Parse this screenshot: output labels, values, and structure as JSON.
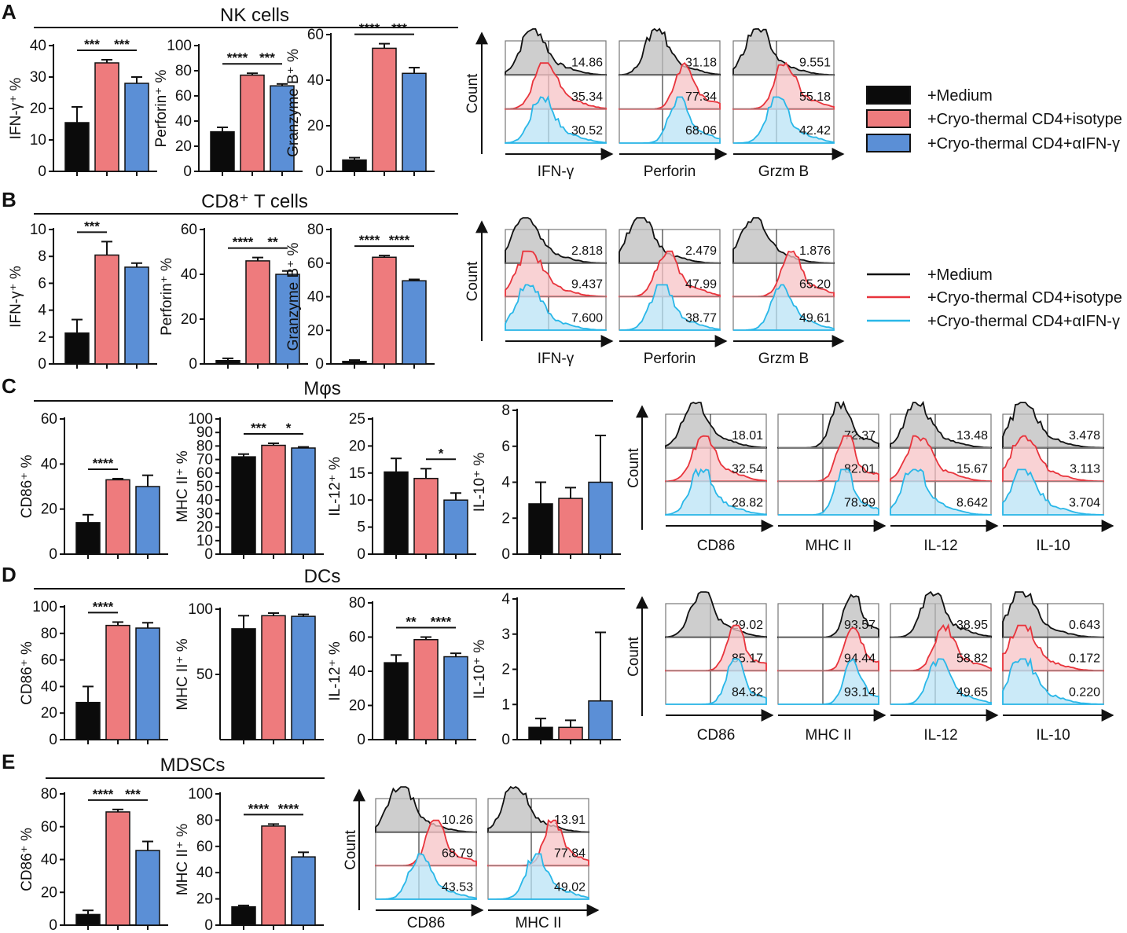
{
  "colors": {
    "medium": "#0b0b0b",
    "isotype": "#ee7b7d",
    "anti_ifn": "#5b8fd6",
    "hist_isotype": "#e8343c",
    "hist_anti_ifn": "#29b7e8",
    "hist_fill_medium": "#bdbdbd",
    "hist_fill_isotype": "#f7c3c6",
    "hist_fill_anti_ifn": "#b9e3f5"
  },
  "legend_bars": {
    "items": [
      "+Medium",
      "+Cryo-thermal CD4+isotype",
      "+Cryo-thermal CD4+αIFN-γ"
    ]
  },
  "legend_lines": {
    "items": [
      "+Medium",
      "+Cryo-thermal CD4+isotype",
      "+Cryo-thermal CD4+αIFN-γ"
    ]
  },
  "panels": [
    {
      "letter": "A",
      "title": "NK cells"
    },
    {
      "letter": "B",
      "title": "CD8⁺ T cells"
    },
    {
      "letter": "C",
      "title": "Mφs"
    },
    {
      "letter": "D",
      "title": "DCs"
    },
    {
      "letter": "E",
      "title": "MDSCs"
    }
  ],
  "chart_data": [
    {
      "type": "bar",
      "panel": "A",
      "ylabel": "IFN-γ⁺ %",
      "ylim": [
        0,
        40
      ],
      "ticks": [
        0,
        10,
        20,
        30,
        40
      ],
      "series": [
        {
          "name": "+Medium",
          "values": [
            15.5
          ],
          "errors": [
            5.0
          ]
        },
        {
          "name": "+Cryo-thermal CD4+isotype",
          "values": [
            34.5
          ],
          "errors": [
            1.0
          ]
        },
        {
          "name": "+Cryo-thermal CD4+αIFN-γ",
          "values": [
            28.0
          ],
          "errors": [
            2.0
          ]
        }
      ],
      "significance": [
        {
          "from": 0,
          "to": 1,
          "label": "***"
        },
        {
          "from": 1,
          "to": 2,
          "label": "***"
        }
      ]
    },
    {
      "type": "bar",
      "panel": "A",
      "ylabel": "Perforin⁺ %",
      "ylim": [
        0,
        100
      ],
      "ticks": [
        0,
        20,
        40,
        60,
        80,
        100
      ],
      "series": [
        {
          "name": "+Medium",
          "values": [
            31.5
          ],
          "errors": [
            3.5
          ]
        },
        {
          "name": "+Cryo-thermal CD4+isotype",
          "values": [
            76.5
          ],
          "errors": [
            1.5
          ]
        },
        {
          "name": "+Cryo-thermal CD4+αIFN-γ",
          "values": [
            68.0
          ],
          "errors": [
            1.5
          ]
        }
      ],
      "significance": [
        {
          "from": 0,
          "to": 1,
          "label": "****"
        },
        {
          "from": 1,
          "to": 2,
          "label": "***"
        }
      ]
    },
    {
      "type": "bar",
      "panel": "A",
      "ylabel": "Granzyme B⁺ %",
      "ylim": [
        0,
        60
      ],
      "ticks": [
        0,
        20,
        40,
        60
      ],
      "series": [
        {
          "name": "+Medium",
          "values": [
            5.0
          ],
          "errors": [
            1.0
          ]
        },
        {
          "name": "+Cryo-thermal CD4+isotype",
          "values": [
            54.0
          ],
          "errors": [
            2.0
          ]
        },
        {
          "name": "+Cryo-thermal CD4+αIFN-γ",
          "values": [
            43.0
          ],
          "errors": [
            2.5
          ]
        }
      ],
      "significance": [
        {
          "from": 0,
          "to": 1,
          "label": "****"
        },
        {
          "from": 1,
          "to": 2,
          "label": "***"
        }
      ]
    },
    {
      "type": "bar",
      "panel": "B",
      "ylabel": "IFN-γ⁺ %",
      "ylim": [
        0,
        10
      ],
      "ticks": [
        0,
        2,
        4,
        6,
        8,
        10
      ],
      "series": [
        {
          "name": "+Medium",
          "values": [
            2.3
          ],
          "errors": [
            1.0
          ]
        },
        {
          "name": "+Cryo-thermal CD4+isotype",
          "values": [
            8.1
          ],
          "errors": [
            1.0
          ]
        },
        {
          "name": "+Cryo-thermal CD4+αIFN-γ",
          "values": [
            7.2
          ],
          "errors": [
            0.3
          ]
        }
      ],
      "significance": [
        {
          "from": 0,
          "to": 1,
          "label": "***"
        }
      ]
    },
    {
      "type": "bar",
      "panel": "B",
      "ylabel": "Perforin⁺ %",
      "ylim": [
        0,
        60
      ],
      "ticks": [
        0,
        20,
        40,
        60
      ],
      "series": [
        {
          "name": "+Medium",
          "values": [
            1.5
          ],
          "errors": [
            1.0
          ]
        },
        {
          "name": "+Cryo-thermal CD4+isotype",
          "values": [
            46.0
          ],
          "errors": [
            1.5
          ]
        },
        {
          "name": "+Cryo-thermal CD4+αIFN-γ",
          "values": [
            40.0
          ],
          "errors": [
            1.5
          ]
        }
      ],
      "significance": [
        {
          "from": 0,
          "to": 1,
          "label": "****"
        },
        {
          "from": 1,
          "to": 2,
          "label": "**"
        }
      ]
    },
    {
      "type": "bar",
      "panel": "B",
      "ylabel": "Granzyme B⁺ %",
      "ylim": [
        0,
        80
      ],
      "ticks": [
        0,
        20,
        40,
        60,
        80
      ],
      "series": [
        {
          "name": "+Medium",
          "values": [
            1.5
          ],
          "errors": [
            0.8
          ]
        },
        {
          "name": "+Cryo-thermal CD4+isotype",
          "values": [
            63.5
          ],
          "errors": [
            1.0
          ]
        },
        {
          "name": "+Cryo-thermal CD4+αIFN-γ",
          "values": [
            49.5
          ],
          "errors": [
            0.8
          ]
        }
      ],
      "significance": [
        {
          "from": 0,
          "to": 1,
          "label": "****"
        },
        {
          "from": 1,
          "to": 2,
          "label": "****"
        }
      ]
    },
    {
      "type": "bar",
      "panel": "C",
      "ylabel": "CD86⁺ %",
      "ylim": [
        0,
        60
      ],
      "ticks": [
        0,
        20,
        40,
        60
      ],
      "series": [
        {
          "name": "+Medium",
          "values": [
            14.0
          ],
          "errors": [
            3.5
          ]
        },
        {
          "name": "+Cryo-thermal CD4+isotype",
          "values": [
            33.0
          ],
          "errors": [
            0.5
          ]
        },
        {
          "name": "+Cryo-thermal CD4+αIFN-γ",
          "values": [
            30.0
          ],
          "errors": [
            5.0
          ]
        }
      ],
      "significance": [
        {
          "from": 0,
          "to": 1,
          "label": "****"
        }
      ]
    },
    {
      "type": "bar",
      "panel": "C",
      "ylabel": "MHC II⁺ %",
      "ylim": [
        0,
        100
      ],
      "ticks": [
        0,
        10,
        20,
        30,
        40,
        50,
        60,
        70,
        80,
        90,
        100
      ],
      "series": [
        {
          "name": "+Medium",
          "values": [
            72.0
          ],
          "errors": [
            2.0
          ]
        },
        {
          "name": "+Cryo-thermal CD4+isotype",
          "values": [
            80.5
          ],
          "errors": [
            1.5
          ]
        },
        {
          "name": "+Cryo-thermal CD4+αIFN-γ",
          "values": [
            78.5
          ],
          "errors": [
            0.8
          ]
        }
      ],
      "significance": [
        {
          "from": 0,
          "to": 1,
          "label": "***"
        },
        {
          "from": 1,
          "to": 2,
          "label": "*"
        }
      ]
    },
    {
      "type": "bar",
      "panel": "C",
      "ylabel": "IL-12⁺ %",
      "ylim": [
        0,
        25
      ],
      "ticks": [
        0,
        5,
        10,
        15,
        20,
        25
      ],
      "series": [
        {
          "name": "+Medium",
          "values": [
            15.2
          ],
          "errors": [
            2.5
          ]
        },
        {
          "name": "+Cryo-thermal CD4+isotype",
          "values": [
            14.0
          ],
          "errors": [
            1.8
          ]
        },
        {
          "name": "+Cryo-thermal CD4+αIFN-γ",
          "values": [
            10.0
          ],
          "errors": [
            1.3
          ]
        }
      ],
      "significance": [
        {
          "from": 1,
          "to": 2,
          "label": "*"
        }
      ]
    },
    {
      "type": "bar",
      "panel": "C",
      "ylabel": "IL-10⁺ %",
      "ylim": [
        0,
        8
      ],
      "ticks": [
        0,
        2,
        4,
        6,
        8
      ],
      "series": [
        {
          "name": "+Medium",
          "values": [
            2.8
          ],
          "errors": [
            1.2
          ]
        },
        {
          "name": "+Cryo-thermal CD4+isotype",
          "values": [
            3.1
          ],
          "errors": [
            0.6
          ]
        },
        {
          "name": "+Cryo-thermal CD4+αIFN-γ",
          "values": [
            4.0
          ],
          "errors": [
            2.6
          ]
        }
      ],
      "significance": []
    },
    {
      "type": "bar",
      "panel": "D",
      "ylabel": "CD86⁺ %",
      "ylim": [
        0,
        100
      ],
      "ticks": [
        0,
        20,
        40,
        60,
        80,
        100
      ],
      "series": [
        {
          "name": "+Medium",
          "values": [
            28.0
          ],
          "errors": [
            12.0
          ]
        },
        {
          "name": "+Cryo-thermal CD4+isotype",
          "values": [
            86.0
          ],
          "errors": [
            2.5
          ]
        },
        {
          "name": "+Cryo-thermal CD4+αIFN-γ",
          "values": [
            84.0
          ],
          "errors": [
            4.0
          ]
        }
      ],
      "significance": [
        {
          "from": 0,
          "to": 1,
          "label": "****"
        }
      ]
    },
    {
      "type": "bar",
      "panel": "D",
      "ylabel": "MHC II⁺ %",
      "ylim": [
        0,
        100
      ],
      "ticks": [
        50,
        100
      ],
      "series": [
        {
          "name": "+Medium",
          "values": [
            85.0
          ],
          "errors": [
            10.0
          ]
        },
        {
          "name": "+Cryo-thermal CD4+isotype",
          "values": [
            95.0
          ],
          "errors": [
            2.0
          ]
        },
        {
          "name": "+Cryo-thermal CD4+αIFN-γ",
          "values": [
            94.5
          ],
          "errors": [
            1.5
          ]
        }
      ],
      "significance": []
    },
    {
      "type": "bar",
      "panel": "D",
      "ylabel": "IL-12⁺ %",
      "ylim": [
        0,
        80
      ],
      "ticks": [
        0,
        20,
        40,
        60,
        80
      ],
      "series": [
        {
          "name": "+Medium",
          "values": [
            45.0
          ],
          "errors": [
            4.5
          ]
        },
        {
          "name": "+Cryo-thermal CD4+isotype",
          "values": [
            58.5
          ],
          "errors": [
            1.5
          ]
        },
        {
          "name": "+Cryo-thermal CD4+αIFN-γ",
          "values": [
            48.5
          ],
          "errors": [
            2.0
          ]
        }
      ],
      "significance": [
        {
          "from": 0,
          "to": 1,
          "label": "**"
        },
        {
          "from": 1,
          "to": 2,
          "label": "****"
        }
      ]
    },
    {
      "type": "bar",
      "panel": "D",
      "ylabel": "IL-10⁺ %",
      "ylim": [
        0,
        4
      ],
      "ticks": [
        0,
        1,
        2,
        3,
        4
      ],
      "series": [
        {
          "name": "+Medium",
          "values": [
            0.35
          ],
          "errors": [
            0.25
          ]
        },
        {
          "name": "+Cryo-thermal CD4+isotype",
          "values": [
            0.35
          ],
          "errors": [
            0.2
          ]
        },
        {
          "name": "+Cryo-thermal CD4+αIFN-γ",
          "values": [
            1.1
          ],
          "errors": [
            1.95
          ]
        }
      ],
      "significance": []
    },
    {
      "type": "bar",
      "panel": "E",
      "ylabel": "CD86⁺ %",
      "ylim": [
        0,
        80
      ],
      "ticks": [
        0,
        20,
        40,
        60,
        80
      ],
      "series": [
        {
          "name": "+Medium",
          "values": [
            6.5
          ],
          "errors": [
            2.5
          ]
        },
        {
          "name": "+Cryo-thermal CD4+isotype",
          "values": [
            69.0
          ],
          "errors": [
            1.5
          ]
        },
        {
          "name": "+Cryo-thermal CD4+αIFN-γ",
          "values": [
            45.5
          ],
          "errors": [
            5.5
          ]
        }
      ],
      "significance": [
        {
          "from": 0,
          "to": 1,
          "label": "****"
        },
        {
          "from": 1,
          "to": 2,
          "label": "***"
        }
      ]
    },
    {
      "type": "bar",
      "panel": "E",
      "ylabel": "MHC II⁺ %",
      "ylim": [
        0,
        100
      ],
      "ticks": [
        0,
        20,
        40,
        60,
        80,
        100
      ],
      "series": [
        {
          "name": "+Medium",
          "values": [
            14.0
          ],
          "errors": [
            1.0
          ]
        },
        {
          "name": "+Cryo-thermal CD4+isotype",
          "values": [
            75.5
          ],
          "errors": [
            1.5
          ]
        },
        {
          "name": "+Cryo-thermal CD4+αIFN-γ",
          "values": [
            52.0
          ],
          "errors": [
            3.5
          ]
        }
      ],
      "significance": [
        {
          "from": 0,
          "to": 1,
          "label": "****"
        },
        {
          "from": 1,
          "to": 2,
          "label": "****"
        }
      ]
    }
  ],
  "histograms": [
    {
      "panel": "A",
      "ylabel": "Count",
      "plots": [
        {
          "marker": "IFN-γ",
          "values": [
            "14.86",
            "35.34",
            "30.52"
          ]
        },
        {
          "marker": "Perforin",
          "values": [
            "31.18",
            "77.34",
            "68.06"
          ]
        },
        {
          "marker": "Grzm B",
          "values": [
            "9.551",
            "55.18",
            "42.42"
          ]
        }
      ]
    },
    {
      "panel": "B",
      "ylabel": "Count",
      "plots": [
        {
          "marker": "IFN-γ",
          "values": [
            "2.818",
            "9.437",
            "7.600"
          ]
        },
        {
          "marker": "Perforin",
          "values": [
            "2.479",
            "47.99",
            "38.77"
          ]
        },
        {
          "marker": "Grzm B",
          "values": [
            "1.876",
            "65.20",
            "49.61"
          ]
        }
      ]
    },
    {
      "panel": "C",
      "ylabel": "Count",
      "plots": [
        {
          "marker": "CD86",
          "values": [
            "18.01",
            "32.54",
            "28.82"
          ]
        },
        {
          "marker": "MHC II",
          "values": [
            "72.37",
            "82.01",
            "78.99"
          ]
        },
        {
          "marker": "IL-12",
          "values": [
            "13.48",
            "15.67",
            "8.642"
          ]
        },
        {
          "marker": "IL-10",
          "values": [
            "3.478",
            "3.113",
            "3.704"
          ]
        }
      ]
    },
    {
      "panel": "D",
      "ylabel": "Count",
      "plots": [
        {
          "marker": "CD86",
          "values": [
            "29.02",
            "85.17",
            "84.32"
          ]
        },
        {
          "marker": "MHC II",
          "values": [
            "93.57",
            "94.44",
            "93.14"
          ]
        },
        {
          "marker": "IL-12",
          "values": [
            "38.95",
            "58.82",
            "49.65"
          ]
        },
        {
          "marker": "IL-10",
          "values": [
            "0.643",
            "0.172",
            "0.220"
          ]
        }
      ]
    },
    {
      "panel": "E",
      "ylabel": "Count",
      "plots": [
        {
          "marker": "CD86",
          "values": [
            "10.26",
            "68.79",
            "43.53"
          ]
        },
        {
          "marker": "MHC II",
          "values": [
            "13.91",
            "77.84",
            "49.02"
          ]
        }
      ]
    }
  ]
}
